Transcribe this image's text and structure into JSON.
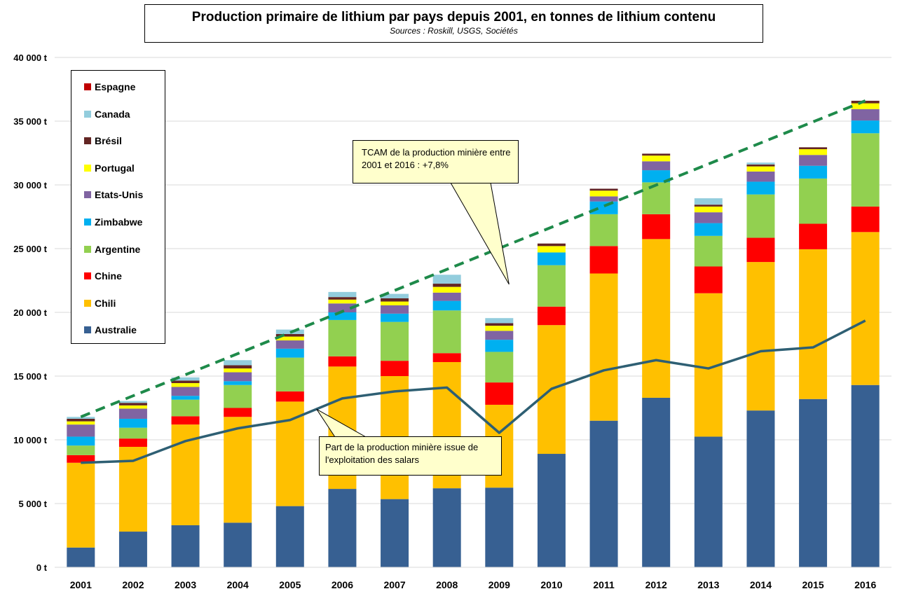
{
  "title": "Production primaire de lithium par pays depuis 2001, en tonnes de lithium contenu",
  "subtitle": "Sources : Roskill, USGS, Sociétés",
  "annotations": {
    "tcam": "TCAM de la production minière entre 2001 et 2016 : +7,8%",
    "salars": "Part de la production minière issue de l'exploitation des salars"
  },
  "legend_order": [
    "Espagne",
    "Canada",
    "Brésil",
    "Portugal",
    "Etats-Unis",
    "Zimbabwe",
    "Argentine",
    "Chine",
    "Chili",
    "Australie"
  ],
  "colors": {
    "Australie": "#376092",
    "Chili": "#FFC000",
    "Chine": "#FF0000",
    "Argentine": "#92D050",
    "Zimbabwe": "#00B0F0",
    "Etats-Unis": "#8064A2",
    "Portugal": "#FFFF00",
    "Brésil": "#632523",
    "Canada": "#93CDDD",
    "Espagne": "#C00000",
    "salars_line": "#2E5F73",
    "trend_line": "#1E8A4A",
    "callout_fill": "#FFFFCC"
  },
  "chart_data": {
    "type": "bar",
    "stacked": true,
    "categories": [
      "2001",
      "2002",
      "2003",
      "2004",
      "2005",
      "2006",
      "2007",
      "2008",
      "2009",
      "2010",
      "2011",
      "2012",
      "2013",
      "2014",
      "2015",
      "2016"
    ],
    "ylim": [
      0,
      40000
    ],
    "yticks": [
      0,
      5000,
      10000,
      15000,
      20000,
      25000,
      30000,
      35000,
      40000
    ],
    "ytick_labels": [
      "0 t",
      "5 000 t",
      "10 000 t",
      "15 000 t",
      "20 000 t",
      "25 000 t",
      "30 000 t",
      "35 000 t",
      "40 000 t"
    ],
    "grid": "horizontal",
    "legend": "top-left",
    "series": [
      {
        "name": "Australie",
        "values": [
          1550,
          2800,
          3300,
          3500,
          4800,
          6150,
          5350,
          6200,
          6250,
          8900,
          11500,
          13300,
          10250,
          12300,
          13200,
          14300
        ]
      },
      {
        "name": "Chili",
        "values": [
          6650,
          6650,
          7900,
          8300,
          8200,
          9600,
          9650,
          9900,
          6500,
          10100,
          11550,
          12450,
          11250,
          11650,
          11750,
          12000
        ]
      },
      {
        "name": "Chine",
        "values": [
          600,
          650,
          650,
          700,
          800,
          800,
          1200,
          700,
          1750,
          1450,
          2150,
          1950,
          2100,
          1900,
          2000,
          2000
        ]
      },
      {
        "name": "Argentine",
        "values": [
          750,
          850,
          1300,
          1800,
          2650,
          2850,
          3050,
          3350,
          2400,
          3250,
          2500,
          2500,
          2400,
          3400,
          3550,
          5750
        ]
      },
      {
        "name": "Zimbabwe",
        "values": [
          700,
          700,
          300,
          300,
          700,
          600,
          650,
          750,
          950,
          1000,
          1000,
          950,
          1000,
          1000,
          1000,
          1000
        ]
      },
      {
        "name": "Etats-Unis",
        "values": [
          950,
          800,
          700,
          700,
          650,
          700,
          650,
          650,
          700,
          0,
          400,
          700,
          850,
          800,
          850,
          900
        ]
      },
      {
        "name": "Portugal",
        "values": [
          250,
          250,
          300,
          300,
          300,
          300,
          300,
          450,
          400,
          500,
          450,
          450,
          450,
          400,
          450,
          450
        ]
      },
      {
        "name": "Brésil",
        "values": [
          200,
          200,
          200,
          250,
          200,
          200,
          250,
          250,
          200,
          200,
          150,
          150,
          150,
          150,
          150,
          200
        ]
      },
      {
        "name": "Canada",
        "values": [
          150,
          150,
          250,
          400,
          350,
          400,
          350,
          700,
          400,
          0,
          0,
          0,
          500,
          150,
          0,
          0
        ]
      },
      {
        "name": "Espagne",
        "values": [
          0,
          0,
          0,
          0,
          0,
          0,
          0,
          0,
          0,
          0,
          0,
          0,
          0,
          0,
          0,
          0
        ]
      }
    ],
    "salars_line": {
      "values": [
        8200,
        8350,
        9900,
        10900,
        11550,
        13250,
        13800,
        14100,
        10550,
        14000,
        15450,
        16250,
        15600,
        16950,
        17250,
        19350
      ]
    },
    "trend_line": {
      "x": [
        "2001",
        "2016"
      ],
      "values": [
        11800,
        36600
      ]
    }
  }
}
